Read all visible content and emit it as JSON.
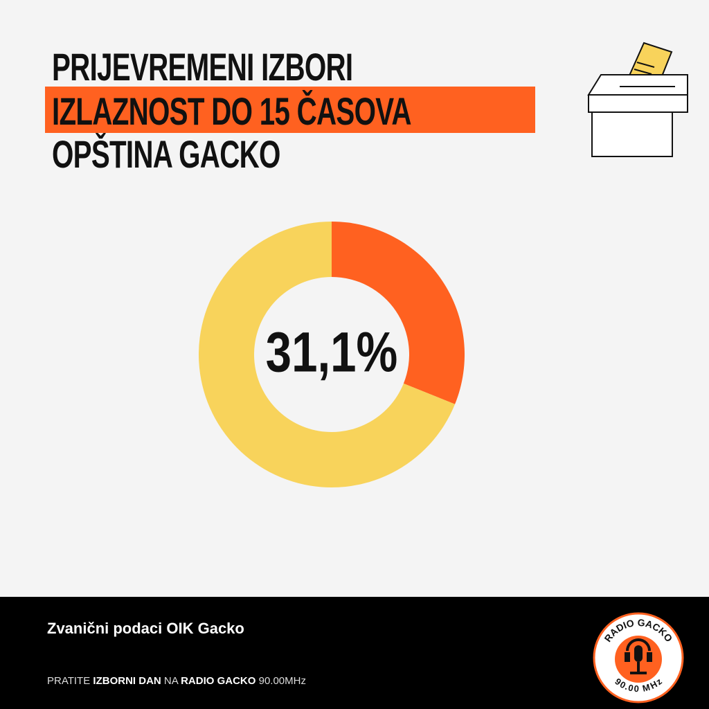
{
  "header": {
    "line1": "PRIJEVREMENI IZBORI",
    "line2": "IZLAZNOST DO 15 ČASOVA",
    "line3": "OPŠTINA GACKO"
  },
  "chart_data": {
    "type": "donut",
    "values": [
      31.1,
      68.9
    ],
    "value_labels": [
      "31,1%",
      null
    ],
    "colors": [
      "#ff6120",
      "#f8d35b"
    ]
  },
  "footer": {
    "source": "Zvanični podaci OIK Gacko",
    "promo": [
      "PRATITE",
      "IZBORNI DAN",
      "NA",
      "RADIO GACKO",
      "90.00MHz"
    ]
  },
  "logo": {
    "top": "RADIO GACKO",
    "bottom": "90.00 MHz"
  }
}
